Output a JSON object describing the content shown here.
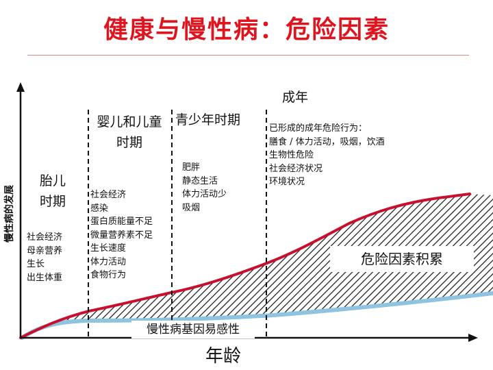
{
  "title": "健康与慢性病：危险因素",
  "y_axis_label": "慢性病的发展",
  "x_axis_label": "年龄",
  "accumulation_label": "危险因素积累",
  "gene_label": "慢性病基因易感性",
  "stages": [
    {
      "title_lines": [
        "胎儿",
        "时期"
      ],
      "factors": [
        "社会经济",
        "母亲营养",
        "生长",
        "出生体重"
      ]
    },
    {
      "title_lines": [
        "婴儿和儿童",
        "时期"
      ],
      "factors": [
        "社会经济",
        "感染",
        "蛋白质能量不足",
        "微量营养素不足",
        "生长速度",
        "体力活动",
        "食物行为"
      ]
    },
    {
      "title_lines": [
        "青少年时期"
      ],
      "factors": [
        "肥胖",
        "静态生活",
        "体力活动少",
        "吸烟"
      ]
    },
    {
      "title_lines": [
        "成年"
      ],
      "factors": [
        "已形成的成年危险行为：",
        "膳食 / 体力活动，吸烟，饮酒",
        "生物性危险",
        "社会经济状况",
        "环境状况"
      ]
    }
  ],
  "colors": {
    "title": "#e0141e",
    "risk_curve": "#c8102e",
    "gene_curve": "#8ec4e0",
    "hatch": "#222222"
  }
}
